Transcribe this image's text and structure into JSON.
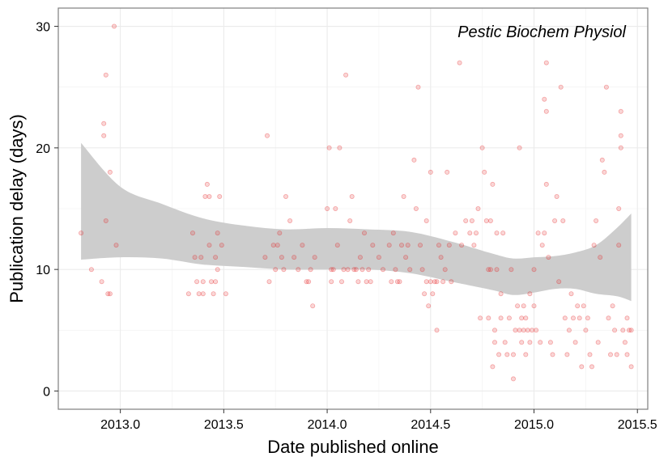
{
  "chart_data": {
    "type": "scatter",
    "annotation": "Pestic Biochem Physiol",
    "xlabel": "Date published online",
    "ylabel": "Publication delay (days)",
    "xlim": [
      2012.7,
      2015.55
    ],
    "ylim": [
      -1.5,
      31.5
    ],
    "x_ticks": [
      2013.0,
      2013.5,
      2014.0,
      2014.5,
      2015.0,
      2015.5
    ],
    "x_tick_labels": [
      "2013.0",
      "2013.5",
      "2014.0",
      "2014.5",
      "2015.0",
      "2015.5"
    ],
    "y_ticks": [
      0,
      10,
      20,
      30
    ],
    "y_tick_labels": [
      "0",
      "10",
      "20",
      "30"
    ],
    "grid": true,
    "colors": {
      "points": "#e41a1c",
      "band": "#cccccc",
      "grid": "#ebebeb",
      "panel_border": "#7f7f7f"
    },
    "confidence_band": {
      "x": [
        2012.81,
        2013.0,
        2013.2,
        2013.4,
        2013.6,
        2013.8,
        2014.0,
        2014.2,
        2014.4,
        2014.6,
        2014.8,
        2014.9,
        2015.0,
        2015.1,
        2015.2,
        2015.3,
        2015.4,
        2015.47
      ],
      "upper": [
        20.4,
        16.8,
        15.4,
        14.2,
        13.6,
        13.3,
        13.4,
        13.3,
        13.1,
        12.3,
        11.3,
        10.9,
        11.0,
        11.1,
        11.4,
        12.0,
        13.4,
        14.6
      ],
      "lower": [
        10.8,
        11.0,
        10.9,
        10.4,
        10.2,
        10.0,
        10.0,
        10.0,
        9.7,
        9.0,
        8.3,
        7.9,
        8.1,
        8.4,
        8.4,
        8.0,
        7.8,
        7.4
      ]
    },
    "points": [
      [
        2012.81,
        13
      ],
      [
        2012.86,
        10
      ],
      [
        2012.91,
        9
      ],
      [
        2012.92,
        22
      ],
      [
        2012.92,
        21
      ],
      [
        2012.93,
        26
      ],
      [
        2012.93,
        14
      ],
      [
        2012.94,
        8
      ],
      [
        2012.95,
        8
      ],
      [
        2012.95,
        18
      ],
      [
        2012.97,
        30
      ],
      [
        2012.98,
        12
      ],
      [
        2013.33,
        8
      ],
      [
        2013.35,
        13
      ],
      [
        2013.36,
        11
      ],
      [
        2013.37,
        9
      ],
      [
        2013.38,
        8
      ],
      [
        2013.39,
        11
      ],
      [
        2013.4,
        8
      ],
      [
        2013.4,
        9
      ],
      [
        2013.41,
        16
      ],
      [
        2013.42,
        17
      ],
      [
        2013.43,
        12
      ],
      [
        2013.43,
        16
      ],
      [
        2013.44,
        9
      ],
      [
        2013.45,
        8
      ],
      [
        2013.46,
        11
      ],
      [
        2013.46,
        9
      ],
      [
        2013.47,
        13
      ],
      [
        2013.47,
        10
      ],
      [
        2013.48,
        16
      ],
      [
        2013.49,
        12
      ],
      [
        2013.51,
        8
      ],
      [
        2013.7,
        11
      ],
      [
        2013.71,
        21
      ],
      [
        2013.72,
        9
      ],
      [
        2013.74,
        12
      ],
      [
        2013.75,
        10
      ],
      [
        2013.76,
        12
      ],
      [
        2013.77,
        13
      ],
      [
        2013.78,
        11
      ],
      [
        2013.79,
        10
      ],
      [
        2013.8,
        16
      ],
      [
        2013.82,
        14
      ],
      [
        2013.84,
        11
      ],
      [
        2013.86,
        10
      ],
      [
        2013.88,
        12
      ],
      [
        2013.9,
        9
      ],
      [
        2013.91,
        9
      ],
      [
        2013.92,
        10
      ],
      [
        2013.93,
        7
      ],
      [
        2013.94,
        11
      ],
      [
        2014.0,
        15
      ],
      [
        2014.01,
        20
      ],
      [
        2014.02,
        10
      ],
      [
        2014.02,
        9
      ],
      [
        2014.03,
        10
      ],
      [
        2014.04,
        15
      ],
      [
        2014.05,
        12
      ],
      [
        2014.06,
        20
      ],
      [
        2014.07,
        9
      ],
      [
        2014.08,
        10
      ],
      [
        2014.09,
        26
      ],
      [
        2014.1,
        10
      ],
      [
        2014.11,
        14
      ],
      [
        2014.12,
        16
      ],
      [
        2014.13,
        10
      ],
      [
        2014.14,
        10
      ],
      [
        2014.15,
        9
      ],
      [
        2014.16,
        11
      ],
      [
        2014.17,
        10
      ],
      [
        2014.18,
        13
      ],
      [
        2014.19,
        9
      ],
      [
        2014.2,
        10
      ],
      [
        2014.21,
        9
      ],
      [
        2014.22,
        12
      ],
      [
        2014.25,
        11
      ],
      [
        2014.27,
        10
      ],
      [
        2014.3,
        12
      ],
      [
        2014.31,
        9
      ],
      [
        2014.32,
        13
      ],
      [
        2014.33,
        10
      ],
      [
        2014.34,
        9
      ],
      [
        2014.35,
        9
      ],
      [
        2014.36,
        12
      ],
      [
        2014.37,
        16
      ],
      [
        2014.38,
        11
      ],
      [
        2014.39,
        12
      ],
      [
        2014.4,
        10
      ],
      [
        2014.42,
        19
      ],
      [
        2014.43,
        15
      ],
      [
        2014.44,
        25
      ],
      [
        2014.45,
        12
      ],
      [
        2014.46,
        10
      ],
      [
        2014.47,
        8
      ],
      [
        2014.48,
        9
      ],
      [
        2014.48,
        14
      ],
      [
        2014.49,
        7
      ],
      [
        2014.5,
        9
      ],
      [
        2014.5,
        18
      ],
      [
        2014.51,
        8
      ],
      [
        2014.52,
        9
      ],
      [
        2014.53,
        5
      ],
      [
        2014.53,
        9
      ],
      [
        2014.54,
        12
      ],
      [
        2014.55,
        11
      ],
      [
        2014.56,
        9
      ],
      [
        2014.57,
        10
      ],
      [
        2014.58,
        18
      ],
      [
        2014.59,
        12
      ],
      [
        2014.6,
        9
      ],
      [
        2014.62,
        13
      ],
      [
        2014.64,
        27
      ],
      [
        2014.65,
        12
      ],
      [
        2014.67,
        14
      ],
      [
        2014.69,
        13
      ],
      [
        2014.7,
        14
      ],
      [
        2014.71,
        12
      ],
      [
        2014.72,
        13
      ],
      [
        2014.73,
        15
      ],
      [
        2014.74,
        6
      ],
      [
        2014.75,
        20
      ],
      [
        2014.76,
        18
      ],
      [
        2014.77,
        14
      ],
      [
        2014.78,
        10
      ],
      [
        2014.78,
        6
      ],
      [
        2014.79,
        10
      ],
      [
        2014.79,
        14
      ],
      [
        2014.8,
        17
      ],
      [
        2014.8,
        2
      ],
      [
        2014.81,
        4
      ],
      [
        2014.81,
        5
      ],
      [
        2014.82,
        13
      ],
      [
        2014.82,
        10
      ],
      [
        2014.83,
        3
      ],
      [
        2014.84,
        6
      ],
      [
        2014.84,
        8
      ],
      [
        2014.85,
        13
      ],
      [
        2014.86,
        4
      ],
      [
        2014.87,
        3
      ],
      [
        2014.88,
        6
      ],
      [
        2014.89,
        10
      ],
      [
        2014.9,
        3
      ],
      [
        2014.9,
        1
      ],
      [
        2014.91,
        5
      ],
      [
        2014.92,
        7
      ],
      [
        2014.93,
        5
      ],
      [
        2014.93,
        20
      ],
      [
        2014.94,
        4
      ],
      [
        2014.94,
        6
      ],
      [
        2014.95,
        5
      ],
      [
        2014.95,
        7
      ],
      [
        2014.96,
        6
      ],
      [
        2014.96,
        3
      ],
      [
        2014.97,
        5
      ],
      [
        2014.98,
        8
      ],
      [
        2014.98,
        4
      ],
      [
        2014.99,
        5
      ],
      [
        2015.0,
        7
      ],
      [
        2015.0,
        10
      ],
      [
        2015.01,
        5
      ],
      [
        2015.02,
        13
      ],
      [
        2015.03,
        4
      ],
      [
        2015.04,
        12
      ],
      [
        2015.05,
        24
      ],
      [
        2015.05,
        13
      ],
      [
        2015.06,
        27
      ],
      [
        2015.06,
        23
      ],
      [
        2015.06,
        17
      ],
      [
        2015.07,
        11
      ],
      [
        2015.08,
        4
      ],
      [
        2015.09,
        3
      ],
      [
        2015.1,
        14
      ],
      [
        2015.11,
        16
      ],
      [
        2015.12,
        9
      ],
      [
        2015.13,
        25
      ],
      [
        2015.14,
        14
      ],
      [
        2015.15,
        6
      ],
      [
        2015.16,
        3
      ],
      [
        2015.17,
        5
      ],
      [
        2015.18,
        8
      ],
      [
        2015.19,
        6
      ],
      [
        2015.2,
        4
      ],
      [
        2015.21,
        7
      ],
      [
        2015.22,
        6
      ],
      [
        2015.23,
        2
      ],
      [
        2015.24,
        7
      ],
      [
        2015.25,
        5
      ],
      [
        2015.26,
        6
      ],
      [
        2015.27,
        3
      ],
      [
        2015.28,
        2
      ],
      [
        2015.29,
        12
      ],
      [
        2015.3,
        14
      ],
      [
        2015.31,
        4
      ],
      [
        2015.32,
        11
      ],
      [
        2015.33,
        19
      ],
      [
        2015.34,
        18
      ],
      [
        2015.35,
        25
      ],
      [
        2015.36,
        6
      ],
      [
        2015.37,
        3
      ],
      [
        2015.38,
        7
      ],
      [
        2015.39,
        5
      ],
      [
        2015.4,
        3
      ],
      [
        2015.41,
        15
      ],
      [
        2015.41,
        12
      ],
      [
        2015.42,
        20
      ],
      [
        2015.42,
        23
      ],
      [
        2015.42,
        21
      ],
      [
        2015.43,
        5
      ],
      [
        2015.44,
        4
      ],
      [
        2015.45,
        6
      ],
      [
        2015.45,
        3
      ],
      [
        2015.46,
        5
      ],
      [
        2015.47,
        5
      ],
      [
        2015.47,
        2
      ]
    ]
  }
}
